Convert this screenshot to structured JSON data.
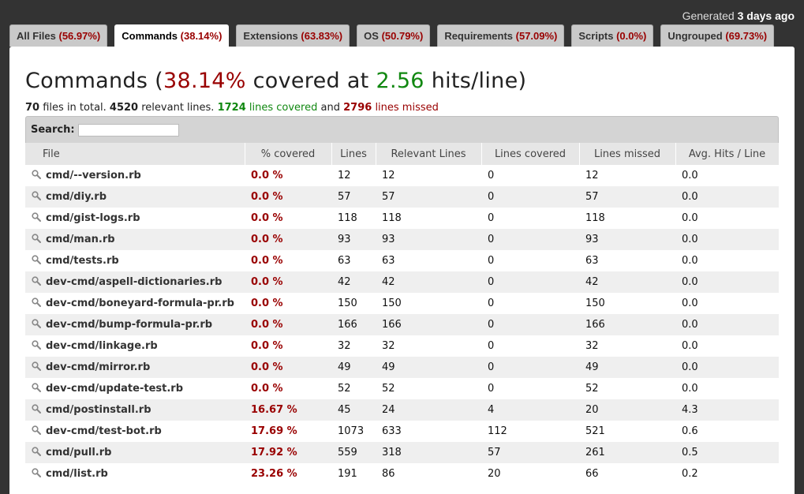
{
  "header": {
    "generated_prefix": "Generated",
    "generated_when": "3 days ago"
  },
  "tabs": [
    {
      "label": "All Files",
      "pct": "(56.97%)"
    },
    {
      "label": "Commands",
      "pct": "(38.14%)"
    },
    {
      "label": "Extensions",
      "pct": "(63.83%)"
    },
    {
      "label": "OS",
      "pct": "(50.79%)"
    },
    {
      "label": "Requirements",
      "pct": "(57.09%)"
    },
    {
      "label": "Scripts",
      "pct": "(0.0%)"
    },
    {
      "label": "Ungrouped",
      "pct": "(69.73%)"
    }
  ],
  "title": {
    "group": "Commands",
    "open": "(",
    "percent": "38.14%",
    "covered_at": "covered at",
    "hits": "2.56",
    "hits_suffix": "hits/line)"
  },
  "summary": {
    "files": "70",
    "files_text": "files in total.",
    "relevant": "4520",
    "relevant_text": "relevant lines.",
    "covered": "1724",
    "covered_text": "lines covered",
    "and": "and",
    "missed": "2796",
    "missed_text": "lines missed"
  },
  "search": {
    "label": "Search:",
    "value": ""
  },
  "table": {
    "headers": [
      "File",
      "% covered",
      "Lines",
      "Relevant Lines",
      "Lines covered",
      "Lines missed",
      "Avg. Hits / Line"
    ],
    "rows": [
      [
        "cmd/--version.rb",
        "0.0 %",
        "12",
        "12",
        "0",
        "12",
        "0.0"
      ],
      [
        "cmd/diy.rb",
        "0.0 %",
        "57",
        "57",
        "0",
        "57",
        "0.0"
      ],
      [
        "cmd/gist-logs.rb",
        "0.0 %",
        "118",
        "118",
        "0",
        "118",
        "0.0"
      ],
      [
        "cmd/man.rb",
        "0.0 %",
        "93",
        "93",
        "0",
        "93",
        "0.0"
      ],
      [
        "cmd/tests.rb",
        "0.0 %",
        "63",
        "63",
        "0",
        "63",
        "0.0"
      ],
      [
        "dev-cmd/aspell-dictionaries.rb",
        "0.0 %",
        "42",
        "42",
        "0",
        "42",
        "0.0"
      ],
      [
        "dev-cmd/boneyard-formula-pr.rb",
        "0.0 %",
        "150",
        "150",
        "0",
        "150",
        "0.0"
      ],
      [
        "dev-cmd/bump-formula-pr.rb",
        "0.0 %",
        "166",
        "166",
        "0",
        "166",
        "0.0"
      ],
      [
        "dev-cmd/linkage.rb",
        "0.0 %",
        "32",
        "32",
        "0",
        "32",
        "0.0"
      ],
      [
        "dev-cmd/mirror.rb",
        "0.0 %",
        "49",
        "49",
        "0",
        "49",
        "0.0"
      ],
      [
        "dev-cmd/update-test.rb",
        "0.0 %",
        "52",
        "52",
        "0",
        "52",
        "0.0"
      ],
      [
        "cmd/postinstall.rb",
        "16.67 %",
        "45",
        "24",
        "4",
        "20",
        "4.3"
      ],
      [
        "dev-cmd/test-bot.rb",
        "17.69 %",
        "1073",
        "633",
        "112",
        "521",
        "0.6"
      ],
      [
        "cmd/pull.rb",
        "17.92 %",
        "559",
        "318",
        "57",
        "261",
        "0.5"
      ],
      [
        "cmd/list.rb",
        "23.26 %",
        "191",
        "86",
        "20",
        "66",
        "0.2"
      ]
    ]
  },
  "colors": {
    "missed": "#990000",
    "covered": "#118811",
    "background": "#333333"
  }
}
